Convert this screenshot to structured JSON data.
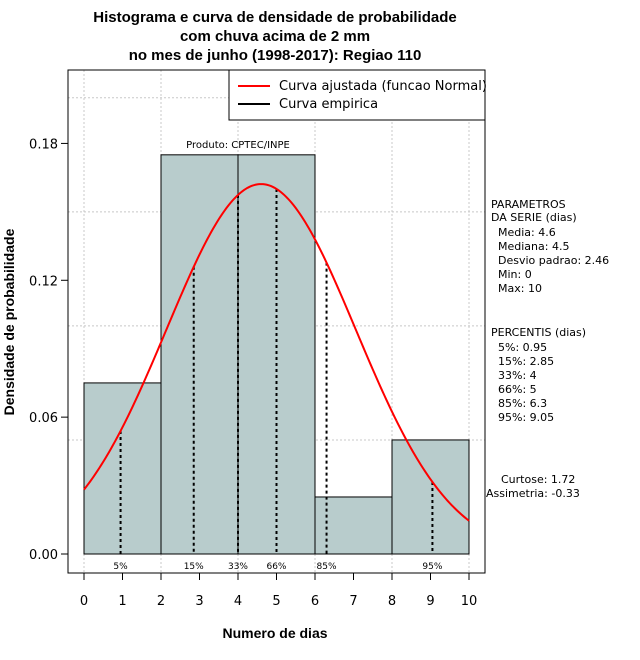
{
  "chart_data": {
    "type": "bar",
    "title_lines": [
      "Histograma e curva de densidade de probabilidade",
      "com chuva acima de 2 mm",
      "no mes de junho (1998-2017): Regiao 110"
    ],
    "xlabel": "Numero de dias",
    "ylabel": "Densidade de probabilidade",
    "xlim": [
      0,
      10
    ],
    "ylim": [
      0,
      0.21
    ],
    "x_ticks": [
      0,
      1,
      2,
      3,
      4,
      5,
      6,
      7,
      8,
      9,
      10
    ],
    "y_ticks": [
      0.0,
      0.06,
      0.12,
      0.18
    ],
    "y_tick_labels": [
      "0.00",
      "0.06",
      "0.12",
      "0.18"
    ],
    "grid": true,
    "bins": [
      {
        "from": 0,
        "to": 2,
        "density": 0.075
      },
      {
        "from": 2,
        "to": 4,
        "density": 0.175
      },
      {
        "from": 4,
        "to": 6,
        "density": 0.175
      },
      {
        "from": 6,
        "to": 8,
        "density": 0.025
      },
      {
        "from": 8,
        "to": 10,
        "density": 0.05
      }
    ],
    "fitted_curve": {
      "name": "Curva ajustada (funcao Normal)",
      "mean": 4.6,
      "sd": 2.46,
      "color": "#ff0000"
    },
    "empirical_curve": {
      "name": "Curva empirica",
      "color": "#000000"
    },
    "percentile_markers": [
      {
        "label": "5%",
        "x": 0.95
      },
      {
        "label": "15%",
        "x": 2.85
      },
      {
        "label": "33%",
        "x": 4
      },
      {
        "label": "66%",
        "x": 5
      },
      {
        "label": "85%",
        "x": 6.3
      },
      {
        "label": "95%",
        "x": 9.05
      }
    ],
    "product_label": "Produto: CPTEC/INPE",
    "legend_position": "top-right",
    "bar_fill": "#b8cccc"
  },
  "stats": {
    "params_title": [
      "PARAMETROS",
      "DA SERIE (dias)"
    ],
    "params": [
      "Media: 4.6",
      "Mediana: 4.5",
      "Desvio padrao: 2.46",
      "Min: 0",
      "Max: 10"
    ],
    "percentis_title": "PERCENTIS (dias)",
    "percentis": [
      "5%: 0.95",
      "15%: 2.85",
      "33%: 4",
      "66%: 5",
      "85%: 6.3",
      "95%: 9.05"
    ],
    "shape": [
      "Curtose: 1.72",
      "Assimetria: -0.33"
    ]
  }
}
